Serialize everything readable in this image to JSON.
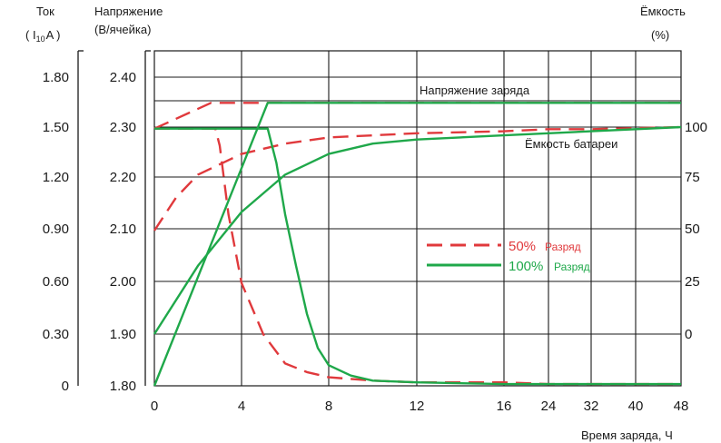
{
  "chart_data": {
    "type": "line",
    "left_axis_current": {
      "title_line1": "Ток",
      "title_line2": "( I",
      "title_sub": "10",
      "title_tail": "A )",
      "ticks": [
        "1.80",
        "1.50",
        "1.20",
        "0.90",
        "0.60",
        "0.30",
        "0"
      ],
      "ylim": [
        0,
        1.8
      ]
    },
    "left_axis_voltage": {
      "title_line1": "Напряжение",
      "title_line2": "(В/ячейка)",
      "ticks": [
        "2.40",
        "2.30",
        "2.20",
        "2.10",
        "2.00",
        "1.90",
        "1.80"
      ],
      "ylim": [
        1.8,
        2.4
      ]
    },
    "right_axis_capacity": {
      "title_line1": "Ёмкость",
      "title_line2": "(%)",
      "ticks": [
        "100",
        "75",
        "50",
        "25",
        "0"
      ],
      "ylim": [
        0,
        125
      ]
    },
    "x_axis": {
      "label": "Время заряда, Ч",
      "ticks": [
        "0",
        "4",
        "8",
        "12",
        "16",
        "24",
        "32",
        "40",
        "48"
      ],
      "note": "non-linear: 0–16 h linear, 16–48 h compressed"
    },
    "annotations": {
      "charge_voltage": "Напряжение заряда",
      "battery_capacity": "Ёмкость батареи"
    },
    "legend": {
      "placement": "center-right",
      "items": [
        {
          "pct": "50%",
          "text": "Разряд",
          "color": "#e0393c",
          "style": "dashed"
        },
        {
          "pct": "100%",
          "text": "Разряд",
          "color": "#1fa84a",
          "style": "solid"
        }
      ]
    },
    "series": [
      {
        "name": "50% Разряд",
        "quantity": "voltage",
        "unit": "В/ячейка",
        "x": [
          0,
          2.6,
          4.0,
          48
        ],
        "y": [
          2.3,
          2.35,
          2.35,
          2.35
        ]
      },
      {
        "name": "50% Разряд",
        "quantity": "current",
        "unit": "I10A",
        "x": [
          0,
          2.8,
          3.0,
          3.4,
          4.0,
          5.0,
          6.0,
          7.0,
          8.0,
          10.0,
          12.0,
          16.0,
          24.0,
          48.0
        ],
        "y": [
          1.5,
          1.5,
          1.4,
          1.0,
          0.6,
          0.3,
          0.13,
          0.08,
          0.05,
          0.03,
          0.02,
          0.02,
          0.01,
          0.01
        ]
      },
      {
        "name": "50% Разряд",
        "quantity": "capacity",
        "unit": "%",
        "x": [
          0,
          1,
          2,
          4,
          6,
          8,
          12,
          16,
          24,
          32,
          48
        ],
        "y": [
          50,
          66,
          77,
          87,
          92,
          95,
          97,
          98,
          99,
          99,
          100
        ]
      },
      {
        "name": "100% Разряд",
        "quantity": "voltage",
        "unit": "В/ячейка",
        "x": [
          0,
          5.2,
          48
        ],
        "y": [
          1.8,
          2.35,
          2.35
        ]
      },
      {
        "name": "100% Разряд",
        "quantity": "current",
        "unit": "I10A",
        "x": [
          0,
          5.2,
          5.6,
          6.0,
          6.5,
          7.0,
          7.5,
          8.0,
          9.0,
          10.0,
          12.0,
          16.0,
          24.0,
          48.0
        ],
        "y": [
          1.5,
          1.5,
          1.3,
          1.0,
          0.7,
          0.42,
          0.22,
          0.12,
          0.06,
          0.03,
          0.02,
          0.01,
          0.01,
          0.01
        ]
      },
      {
        "name": "100% Разряд",
        "quantity": "capacity",
        "unit": "%",
        "x": [
          0,
          2,
          4,
          6,
          8,
          10,
          12,
          16,
          24,
          32,
          48
        ],
        "y": [
          0,
          33,
          59,
          77,
          87,
          92,
          94,
          96,
          97,
          98,
          100
        ]
      }
    ],
    "grid": true
  }
}
